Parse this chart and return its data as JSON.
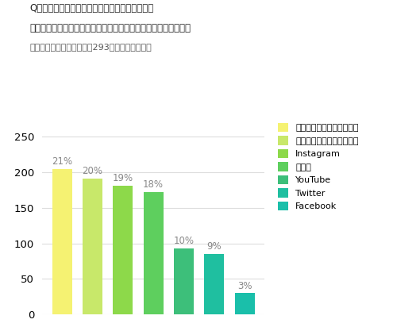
{
  "categories": [
    "商品・サービス公式サイト",
    "レビュー・クチコミサイト",
    "Instagram",
    "ブログ",
    "YouTube",
    "Twitter",
    "Facebook"
  ],
  "values": [
    205,
    191,
    181,
    172,
    93,
    85,
    30
  ],
  "percentages": [
    "21%",
    "20%",
    "19%",
    "18%",
    "10%",
    "9%",
    "3%"
  ],
  "colors": [
    "#f5f272",
    "#c8e86a",
    "#8dd94a",
    "#5ecf5e",
    "#3dbf7a",
    "#1fbfa0",
    "#1abfaa"
  ],
  "legend_labels": [
    "商品・サービス公式サイト",
    "レビュー・クチコミサイト",
    "Instagram",
    "ブログ",
    "YouTube",
    "Twitter",
    "Facebook"
  ],
  "title_line1": "Q：気になった商品・サービスを検索する際に、",
  "title_line2": "よく利用するものを下記より全てお答えください。（複数回答）",
  "subtitle": "（視聴経験ありと回答した293名にアンケート）",
  "yticks": [
    0,
    50,
    100,
    150,
    200,
    250
  ],
  "ylim": [
    0,
    270
  ],
  "bg_color": "#ffffff"
}
